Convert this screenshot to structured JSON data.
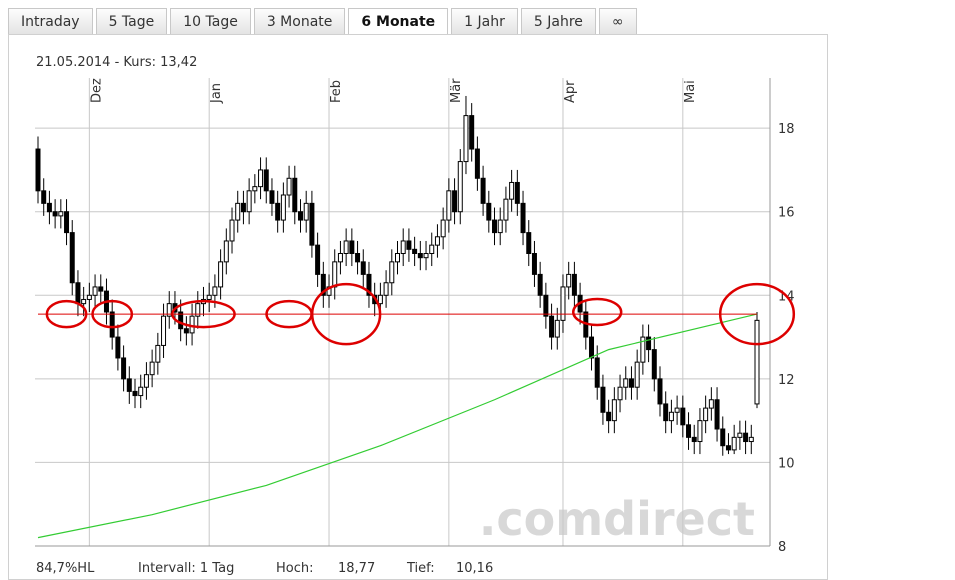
{
  "tabs": [
    "Intraday",
    "5 Tage",
    "10 Tage",
    "3 Monate",
    "6 Monate",
    "1 Jahr",
    "5 Jahre",
    "∞"
  ],
  "active_tab": 4,
  "header": "21.05.2014  -  Kurs: 13,42",
  "footer": [
    "84,7%HL",
    "Intervall: 1 Tag",
    "Hoch:",
    "18,77",
    "Tief:",
    "10,16"
  ],
  "watermark": ".comdirect",
  "chart_data": {
    "type": "candlestick",
    "ylim": [
      8,
      19.2
    ],
    "yticks": [
      8,
      10,
      12,
      14,
      16,
      18
    ],
    "xlim": [
      0,
      126
    ],
    "xticks": [
      {
        "value": 9,
        "label": "Dez"
      },
      {
        "value": 30,
        "label": "Jan"
      },
      {
        "value": 51,
        "label": "Feb"
      },
      {
        "value": 72,
        "label": "Mär"
      },
      {
        "value": 92,
        "label": "Apr"
      },
      {
        "value": 113,
        "label": "Mai"
      }
    ],
    "grid": true,
    "color": "#000000",
    "open": [
      17.5,
      16.5,
      16.2,
      16.0,
      15.9,
      16.0,
      15.5,
      14.3,
      13.8,
      13.9,
      14.0,
      14.2,
      14.1,
      13.6,
      13.0,
      12.5,
      12.0,
      11.7,
      11.6,
      11.8,
      12.1,
      12.4,
      12.8,
      13.5,
      13.8,
      13.6,
      13.2,
      13.1,
      13.5,
      13.8,
      13.9,
      14.0,
      14.2,
      14.8,
      15.3,
      15.8,
      16.2,
      16.0,
      16.5,
      16.6,
      17.0,
      16.5,
      16.2,
      15.8,
      16.4,
      16.8,
      16.0,
      15.8,
      16.2,
      15.2,
      14.5,
      14.0,
      14.2,
      14.8,
      15.0,
      15.3,
      15.0,
      14.8,
      14.5,
      14.0,
      13.8,
      14.0,
      14.3,
      14.8,
      15.0,
      15.3,
      15.1,
      15.0,
      14.9,
      15.0,
      15.2,
      15.4,
      15.8,
      16.5,
      16.0,
      17.2,
      18.3,
      17.5,
      16.8,
      16.2,
      15.8,
      15.5,
      15.8,
      16.3,
      16.7,
      16.2,
      15.5,
      15.0,
      14.5,
      14.0,
      13.5,
      13.0,
      13.4,
      14.2,
      14.5,
      14.0,
      13.6,
      13.0,
      12.5,
      11.8,
      11.2,
      11.0,
      11.5,
      11.8,
      12.0,
      11.8,
      12.4,
      13.0,
      12.7,
      12.0,
      11.4,
      11.0,
      11.2,
      11.3,
      10.9,
      10.6,
      10.5,
      11.0,
      11.3,
      11.5,
      10.8,
      10.4,
      10.3,
      10.6,
      10.7,
      10.5,
      11.4
    ],
    "high": [
      17.8,
      16.8,
      16.5,
      16.3,
      16.3,
      16.3,
      15.8,
      14.6,
      14.2,
      14.3,
      14.5,
      14.5,
      14.4,
      13.9,
      13.3,
      12.8,
      12.3,
      12.0,
      12.1,
      12.4,
      12.7,
      13.1,
      13.8,
      14.1,
      14.1,
      13.9,
      13.5,
      13.8,
      14.1,
      14.2,
      14.3,
      14.5,
      15.1,
      15.6,
      16.1,
      16.5,
      16.5,
      16.8,
      16.9,
      17.3,
      17.3,
      16.8,
      16.5,
      16.7,
      17.1,
      17.1,
      16.3,
      16.5,
      16.5,
      15.5,
      14.8,
      14.5,
      15.1,
      15.3,
      15.6,
      15.6,
      15.3,
      15.1,
      14.8,
      14.3,
      14.3,
      14.6,
      15.1,
      15.3,
      15.6,
      15.6,
      15.4,
      15.3,
      15.3,
      15.5,
      15.7,
      16.1,
      16.8,
      16.8,
      17.5,
      18.77,
      18.6,
      17.8,
      17.1,
      16.5,
      16.1,
      16.1,
      16.6,
      17.0,
      17.0,
      16.5,
      15.8,
      15.3,
      14.8,
      14.3,
      13.8,
      13.7,
      14.5,
      14.8,
      14.8,
      14.3,
      13.9,
      13.3,
      12.8,
      12.1,
      11.5,
      11.8,
      12.1,
      12.3,
      12.3,
      12.7,
      13.3,
      13.3,
      13.0,
      12.3,
      11.7,
      11.5,
      11.6,
      11.6,
      11.2,
      10.9,
      11.3,
      11.6,
      11.8,
      11.8,
      11.1,
      10.7,
      10.9,
      11.0,
      11.0,
      10.9,
      13.6
    ],
    "low": [
      16.2,
      15.9,
      15.7,
      15.6,
      15.6,
      15.2,
      14.0,
      13.5,
      13.5,
      13.6,
      13.7,
      13.8,
      13.3,
      12.7,
      12.2,
      11.7,
      11.4,
      11.3,
      11.3,
      11.5,
      11.8,
      12.1,
      12.5,
      13.2,
      13.3,
      12.9,
      12.8,
      12.8,
      13.2,
      13.5,
      13.6,
      13.7,
      13.9,
      14.5,
      15.0,
      15.5,
      15.7,
      15.7,
      16.2,
      16.3,
      16.2,
      15.9,
      15.5,
      15.5,
      16.1,
      15.7,
      15.5,
      15.5,
      14.9,
      14.2,
      13.7,
      13.7,
      13.9,
      14.5,
      14.7,
      14.7,
      14.5,
      14.2,
      13.7,
      13.5,
      13.5,
      13.7,
      14.0,
      14.5,
      14.7,
      14.8,
      14.7,
      14.6,
      14.6,
      14.7,
      14.9,
      15.1,
      15.5,
      15.7,
      15.7,
      16.9,
      17.2,
      16.5,
      15.9,
      15.5,
      15.2,
      15.2,
      15.5,
      16.0,
      15.9,
      15.2,
      14.7,
      14.2,
      13.7,
      13.2,
      12.7,
      12.7,
      13.1,
      13.9,
      13.7,
      13.3,
      12.7,
      12.2,
      11.5,
      10.9,
      10.7,
      10.7,
      11.2,
      11.5,
      11.5,
      11.5,
      12.1,
      12.4,
      11.7,
      11.1,
      10.7,
      10.7,
      10.9,
      10.6,
      10.3,
      10.2,
      10.2,
      10.7,
      11.0,
      10.5,
      10.16,
      10.2,
      10.2,
      10.3,
      10.2,
      10.2,
      11.3
    ],
    "close": [
      16.5,
      16.2,
      16.0,
      15.9,
      16.0,
      15.5,
      14.3,
      13.8,
      13.9,
      14.0,
      14.2,
      14.1,
      13.6,
      13.0,
      12.5,
      12.0,
      11.7,
      11.6,
      11.8,
      12.1,
      12.4,
      12.8,
      13.5,
      13.8,
      13.6,
      13.2,
      13.1,
      13.5,
      13.8,
      13.9,
      14.0,
      14.2,
      14.8,
      15.3,
      15.8,
      16.2,
      16.0,
      16.5,
      16.6,
      17.0,
      16.5,
      16.2,
      15.8,
      16.4,
      16.8,
      16.0,
      15.8,
      16.2,
      15.2,
      14.5,
      14.0,
      14.2,
      14.8,
      15.0,
      15.3,
      15.0,
      14.8,
      14.5,
      14.0,
      13.8,
      14.0,
      14.3,
      14.8,
      15.0,
      15.3,
      15.1,
      15.0,
      14.9,
      15.0,
      15.2,
      15.4,
      15.8,
      16.5,
      16.0,
      17.2,
      18.3,
      17.5,
      16.8,
      16.2,
      15.8,
      15.5,
      15.8,
      16.3,
      16.7,
      16.2,
      15.5,
      15.0,
      14.5,
      14.0,
      13.5,
      13.0,
      13.4,
      14.2,
      14.5,
      14.0,
      13.6,
      13.0,
      12.5,
      11.8,
      11.2,
      11.0,
      11.5,
      11.8,
      12.0,
      11.8,
      12.4,
      13.0,
      12.7,
      12.0,
      11.4,
      11.0,
      11.2,
      11.3,
      10.9,
      10.6,
      10.5,
      11.0,
      11.3,
      11.5,
      10.8,
      10.4,
      10.3,
      10.6,
      10.7,
      10.5,
      10.6,
      13.4
    ],
    "moving_average": {
      "color": "#33cc33",
      "x": [
        0,
        20,
        40,
        60,
        80,
        100,
        126
      ],
      "values": [
        8.2,
        8.75,
        9.45,
        10.4,
        11.5,
        12.7,
        13.55
      ]
    },
    "reference_line": {
      "value": 13.55,
      "color": "#dd0000"
    },
    "circles": [
      {
        "x": 5,
        "y": 13.55,
        "w": 5.5
      },
      {
        "x": 13,
        "y": 13.55,
        "w": 5.5
      },
      {
        "x": 29,
        "y": 13.55,
        "w": 9.5
      },
      {
        "x": 44,
        "y": 13.55,
        "w": 6.5
      },
      {
        "x": 54,
        "y": 13.55,
        "w": 10.5
      },
      {
        "x": 98,
        "y": 13.6,
        "w": 7
      },
      {
        "x": 126,
        "y": 13.55,
        "w": 11.5
      }
    ]
  }
}
